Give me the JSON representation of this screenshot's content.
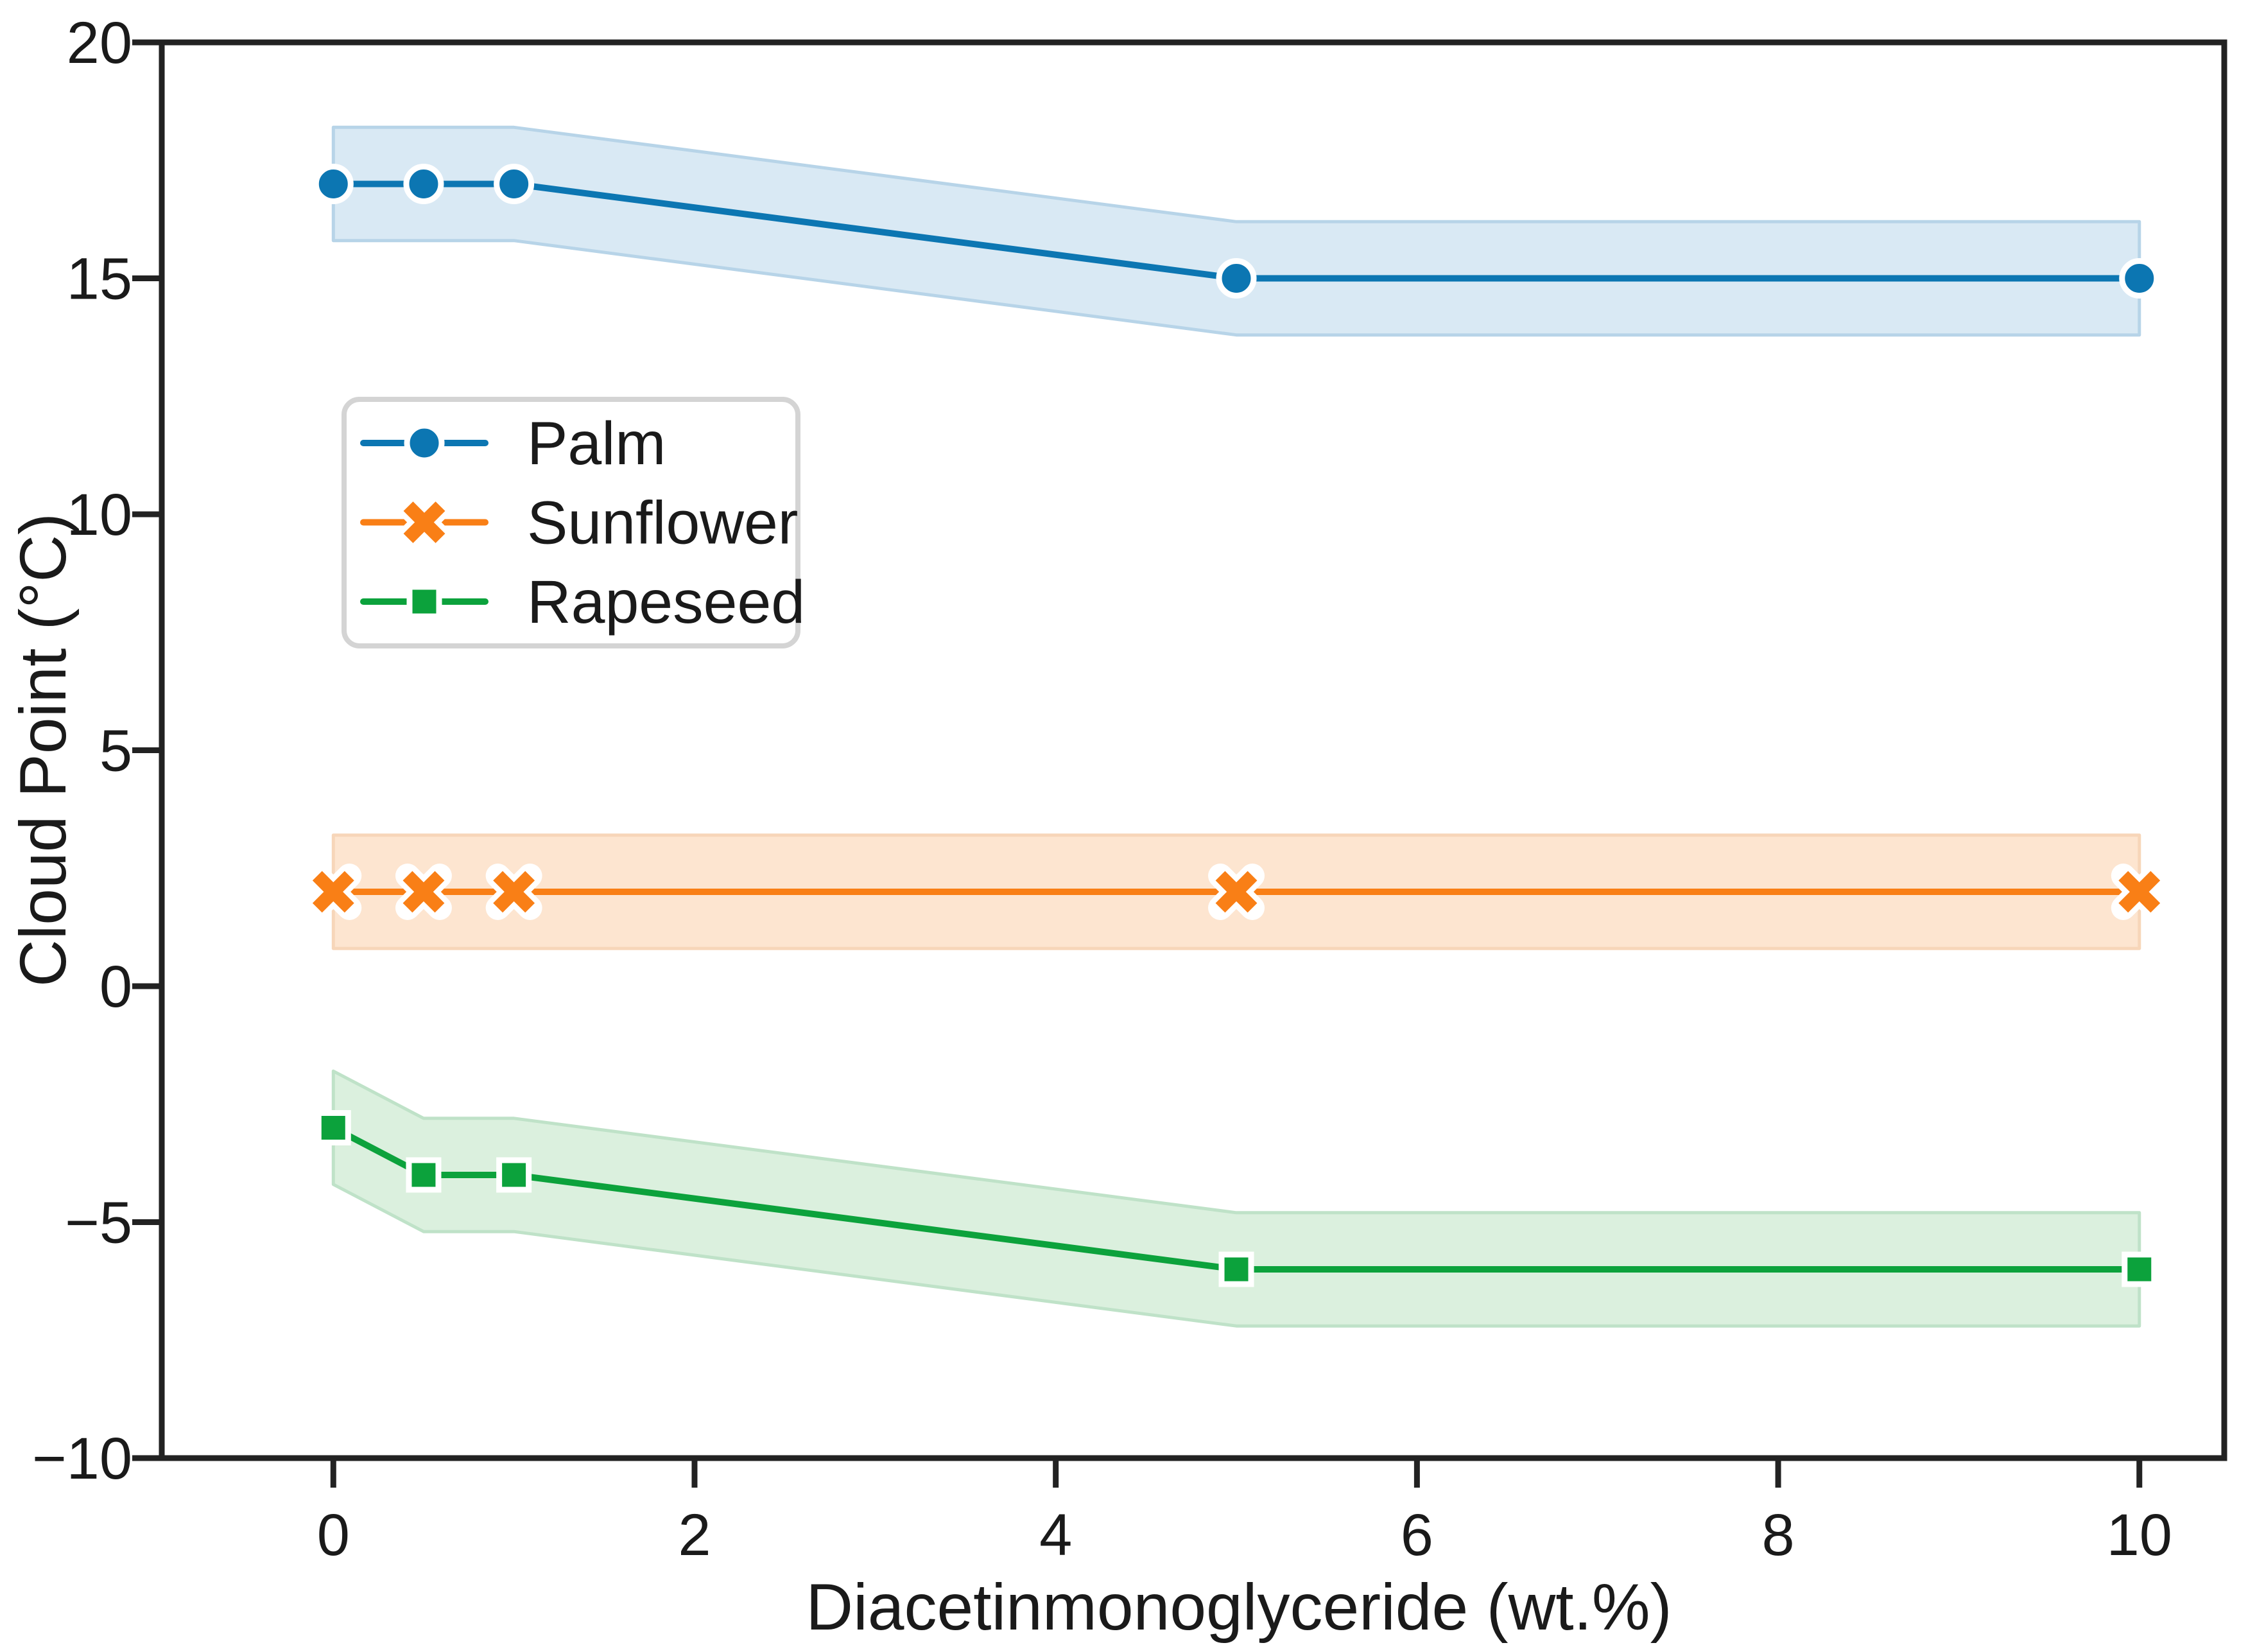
{
  "chart_data": {
    "type": "line",
    "title": "",
    "xlabel": "Diacetinmonoglyceride (wt.%)",
    "ylabel": "Cloud Point (°C)",
    "x": [
      0,
      0.5,
      1,
      5,
      10
    ],
    "series": [
      {
        "name": "Palm",
        "marker": "circle",
        "color": "#0c76b2",
        "band_fill": "#d9e9f4",
        "band_edge": "#b7d4e8",
        "values": [
          17,
          17,
          17,
          15,
          15
        ],
        "error": 1.2,
        "band_upper": [
          18.2,
          18.2,
          18.2,
          16.2,
          16.2
        ],
        "band_lower": [
          15.8,
          15.8,
          15.8,
          13.8,
          13.8
        ]
      },
      {
        "name": "Sunflower",
        "marker": "x",
        "color": "#f97f16",
        "band_fill": "#fde5d0",
        "band_edge": "#f7d6b9",
        "values": [
          2,
          2,
          2,
          2,
          2
        ],
        "error": 1.2,
        "band_upper": [
          3.2,
          3.2,
          3.2,
          3.2,
          3.2
        ],
        "band_lower": [
          0.8,
          0.8,
          0.8,
          0.8,
          0.8
        ]
      },
      {
        "name": "Rapeseed",
        "marker": "square",
        "color": "#0ca23c",
        "band_fill": "#dbf0de",
        "band_edge": "#bfe2c8",
        "values": [
          -3,
          -4,
          -4,
          -6,
          -6
        ],
        "error": 1.2,
        "band_upper": [
          -1.8,
          -2.8,
          -2.8,
          -4.8,
          -4.8
        ],
        "band_lower": [
          -4.2,
          -5.2,
          -5.2,
          -7.2,
          -7.2
        ]
      }
    ],
    "x_ticks": [
      0,
      2,
      4,
      6,
      8,
      10
    ],
    "x_tick_labels": [
      "0",
      "2",
      "4",
      "6",
      "8",
      "10"
    ],
    "y_ticks": [
      20,
      15,
      10,
      5,
      0,
      -5,
      -10
    ],
    "y_tick_labels": [
      "20",
      "15",
      "10",
      "5",
      "0",
      "−5",
      "−10"
    ],
    "xlim": [
      -0.95,
      10.47
    ],
    "ylim": [
      -10,
      20
    ],
    "grid": false,
    "legend_position": "upper-left-inside",
    "legend_labels": [
      "Palm",
      "Sunflower",
      "Rapeseed"
    ],
    "colors": {
      "spine": "#222222",
      "tick": "#222222",
      "text": "#1a1a1a",
      "background": "#ffffff",
      "legend_border": "#d4d4d4",
      "legend_background": "#ffffff",
      "marker_edge": "#ffffff"
    }
  }
}
